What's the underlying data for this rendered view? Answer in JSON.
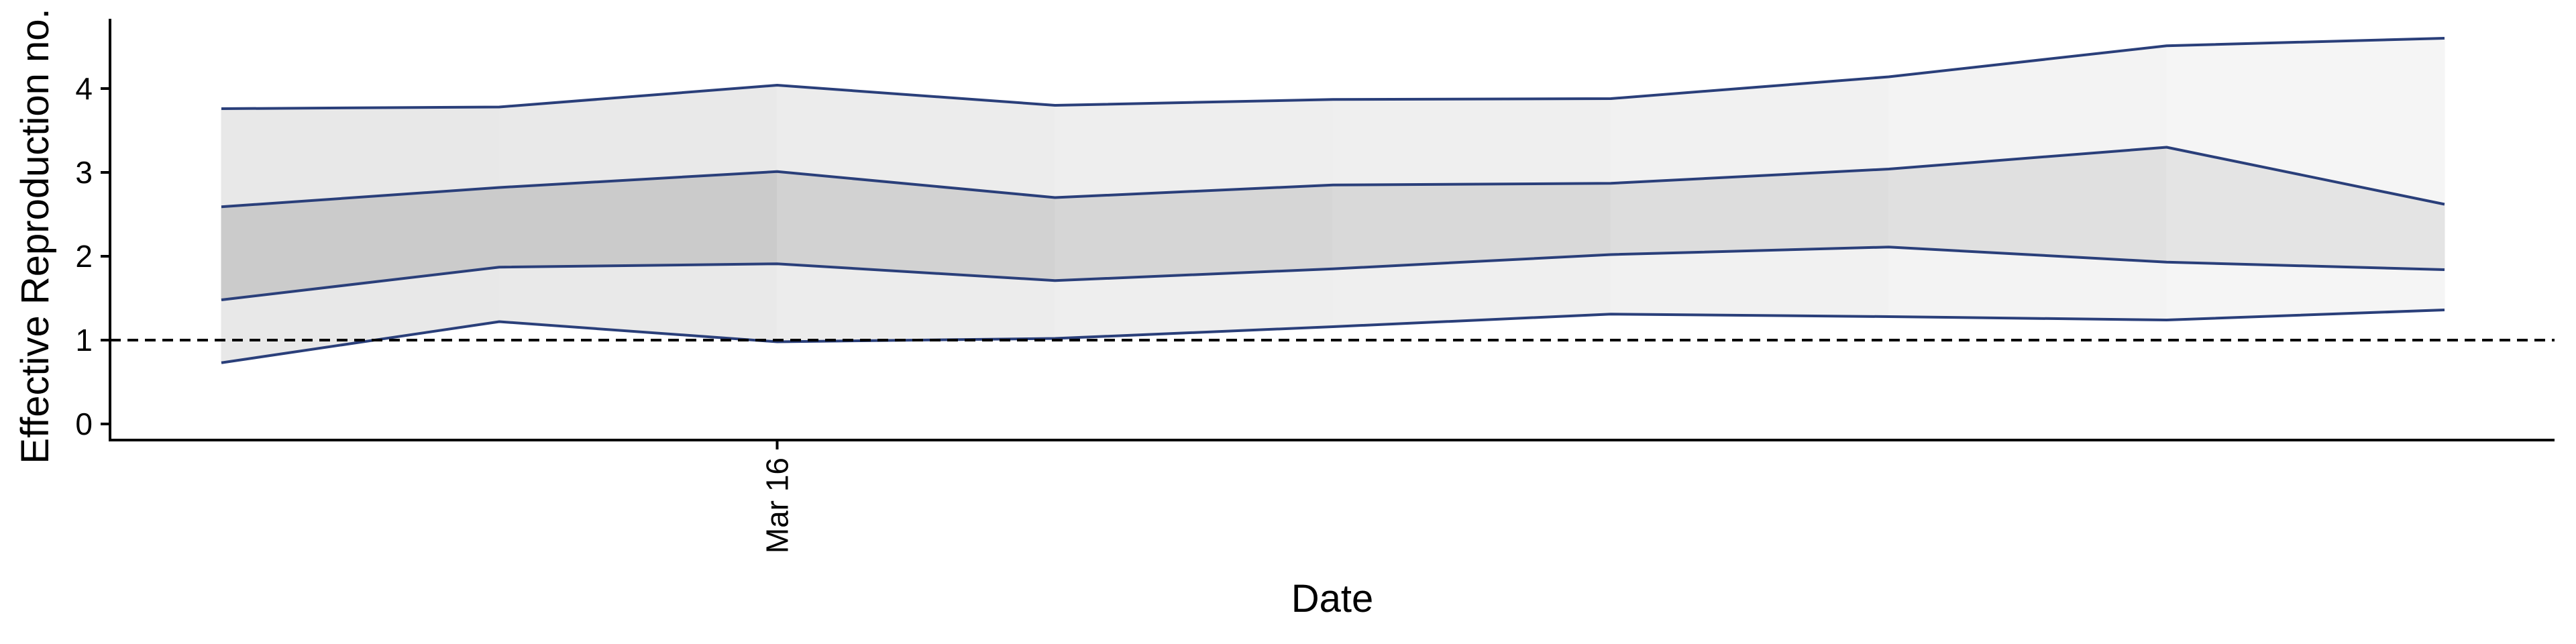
{
  "chart_data": {
    "type": "area",
    "xlabel": "Date",
    "ylabel": "Effective Reproduction no.",
    "x": [
      "2020-03-12",
      "2020-03-14",
      "2020-03-16",
      "2020-03-18",
      "2020-03-20",
      "2020-03-22",
      "2020-03-24",
      "2020-03-26",
      "2020-03-28"
    ],
    "x_ticks": [
      {
        "date": "2020-03-16",
        "label": "Mar 16"
      }
    ],
    "ylim": [
      -0.2,
      5.0
    ],
    "y_ticks": [
      0,
      1,
      2,
      3,
      4
    ],
    "series": [
      {
        "values": [
          0.73,
          1.22,
          0.98,
          1.02,
          1.16,
          1.31,
          1.28,
          1.24,
          1.36
        ]
      },
      {
        "values": [
          1.48,
          1.87,
          1.91,
          1.71,
          1.85,
          2.02,
          2.11,
          1.93,
          1.84
        ]
      },
      {
        "values": [
          2.59,
          2.82,
          3.01,
          2.7,
          2.85,
          2.87,
          3.04,
          3.3,
          2.62
        ]
      },
      {
        "values": [
          3.76,
          3.78,
          4.04,
          3.8,
          3.87,
          3.88,
          4.14,
          4.51,
          4.6
        ]
      }
    ],
    "inner_band_shade": [
      "#cbcbcb",
      "#cbcbcb",
      "#d2d2d2",
      "#d6d6d6",
      "#d9d9d9",
      "#dddddd",
      "#e0e0e0",
      "#e4e4e4"
    ],
    "outer_band_shade": [
      "#e8e8e8",
      "#e9e9e9",
      "#ececec",
      "#eeeeee",
      "#efefef",
      "#f1f1f1",
      "#f3f3f3",
      "#f5f5f5"
    ],
    "reference_line": {
      "y": 1,
      "style": "dashed",
      "color": "#000000"
    },
    "line_color": "#2a3f7a",
    "grid": false,
    "legend": "none"
  }
}
